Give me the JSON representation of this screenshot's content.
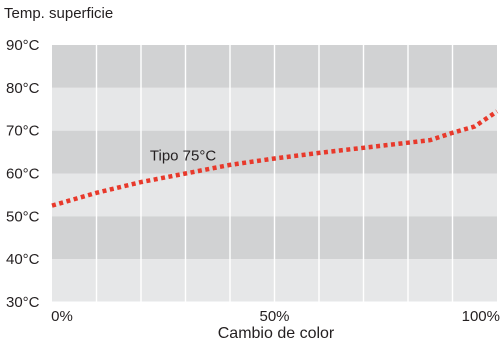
{
  "chart_data": {
    "type": "line",
    "title": "Temp. superficie",
    "xlabel": "Cambio de color",
    "ylabel": "",
    "xlim": [
      0,
      100
    ],
    "ylim": [
      30,
      90
    ],
    "x_ticks": [
      {
        "value": 0,
        "label": "0%"
      },
      {
        "value": 50,
        "label": "50%"
      },
      {
        "value": 100,
        "label": "100%"
      }
    ],
    "y_ticks": [
      {
        "value": 90,
        "label": "90°C"
      },
      {
        "value": 80,
        "label": "80°C"
      },
      {
        "value": 70,
        "label": "70°C"
      },
      {
        "value": 60,
        "label": "60°C"
      },
      {
        "value": 50,
        "label": "50°C"
      },
      {
        "value": 40,
        "label": "40°C"
      },
      {
        "value": 30,
        "label": "30°C"
      }
    ],
    "x_gridlines": [
      10,
      20,
      30,
      40,
      50,
      60,
      70,
      80,
      90
    ],
    "grid": true,
    "series": [
      {
        "name": "Tipo 75°C",
        "color": "#e8392b",
        "style": "dotted",
        "x": [
          0,
          10,
          20,
          30,
          40,
          50,
          60,
          70,
          80,
          85,
          90,
          95,
          100
        ],
        "y": [
          52.5,
          55.5,
          58,
          60,
          62,
          63.5,
          64.8,
          66,
          67.2,
          67.8,
          69.5,
          71,
          74.5
        ]
      }
    ],
    "annotations": [
      {
        "text": "Tipo 75°C",
        "x": 22,
        "y": 63
      }
    ],
    "band_colors": [
      "#d1d2d3",
      "#e6e7e8"
    ]
  }
}
